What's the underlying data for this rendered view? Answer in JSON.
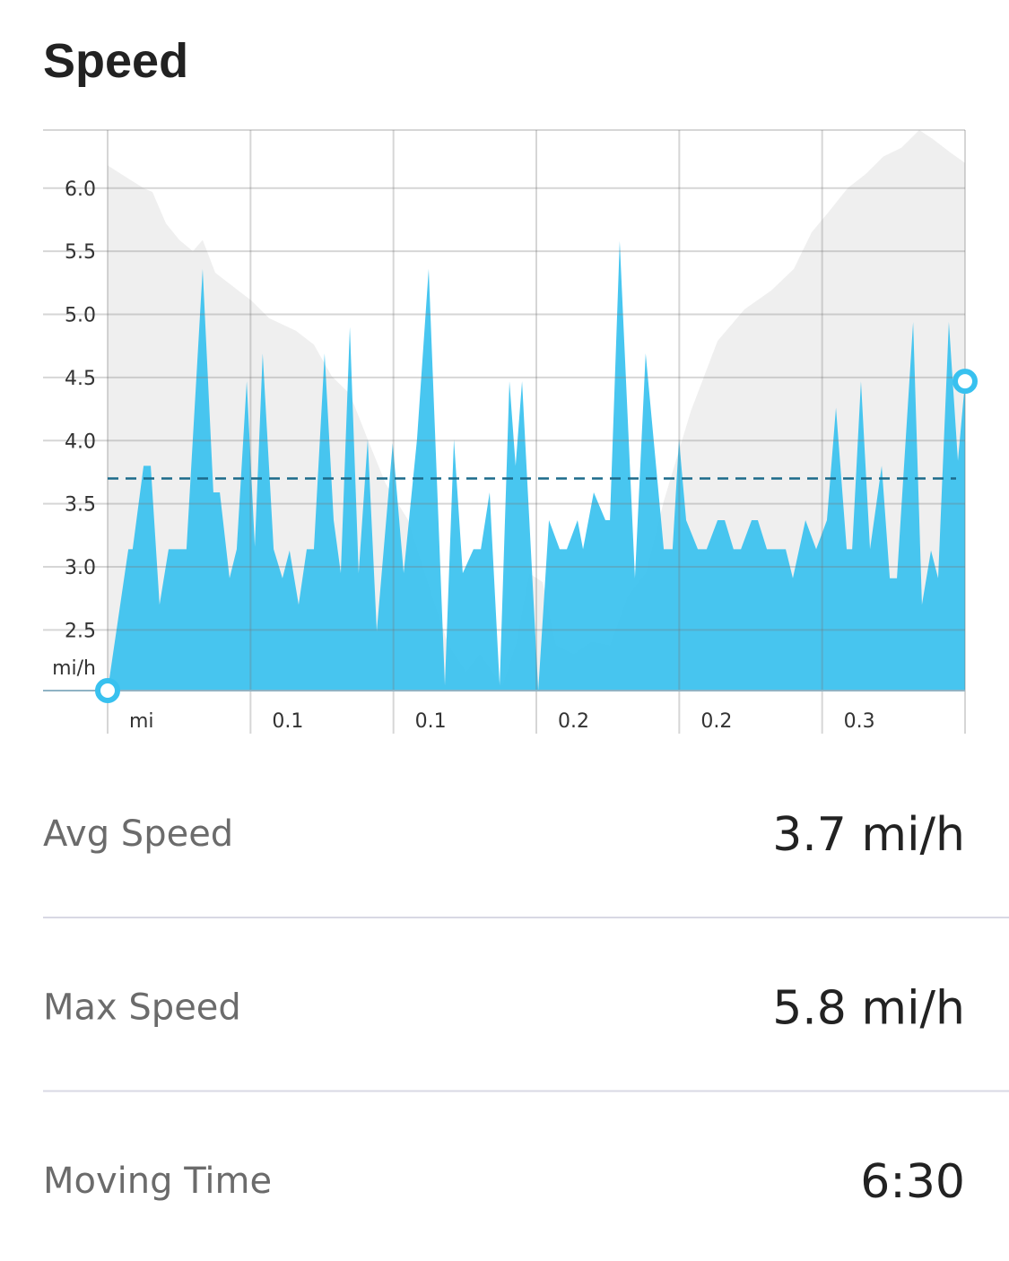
{
  "title": "Speed",
  "chart_data": {
    "type": "area",
    "y_label": "mi/h",
    "xlim": [
      0,
      0.36
    ],
    "ylim": [
      2.02,
      6.46
    ],
    "xticks": [
      {
        "value": 0,
        "label": "mi"
      },
      {
        "value": 0.06,
        "label": "0.1"
      },
      {
        "value": 0.12,
        "label": "0.1"
      },
      {
        "value": 0.18,
        "label": "0.2"
      },
      {
        "value": 0.24,
        "label": "0.2"
      },
      {
        "value": 0.3,
        "label": "0.3"
      }
    ],
    "yticks": [
      2.5,
      {
        "value": 3,
        "label": "3.0"
      },
      3.5,
      {
        "value": 4,
        "label": "4.0"
      },
      4.5,
      {
        "value": 5,
        "label": "5.0"
      },
      5.5,
      {
        "value": 6,
        "label": "6.0"
      }
    ],
    "grid": true,
    "reference_line": 3.7,
    "series": [
      {
        "color": "#efefef",
        "x": [
          0,
          0.0075,
          0.0151,
          0.0188,
          0.0245,
          0.0301,
          0.0358,
          0.0399,
          0.0452,
          0.0527,
          0.0603,
          0.0678,
          0.0791,
          0.0866,
          0.0941,
          0.1017,
          0.1092,
          0.1167,
          0.1262,
          0.1356,
          0.1431,
          0.1506,
          0.1563,
          0.1657,
          0.1713,
          0.177,
          0.1826,
          0.1883,
          0.1958,
          0.2033,
          0.2109,
          0.2184,
          0.2259,
          0.2335,
          0.2448,
          0.2561,
          0.2674,
          0.2787,
          0.2881,
          0.2956,
          0.3031,
          0.3107,
          0.3182,
          0.3257,
          0.3333,
          0.3408,
          0.3464,
          0.354,
          0.36
        ],
        "values": [
          6.18,
          6.09,
          6.0,
          5.97,
          5.72,
          5.59,
          5.5,
          5.59,
          5.33,
          5.22,
          5.11,
          4.97,
          4.87,
          4.76,
          4.51,
          4.37,
          4.01,
          3.66,
          3.37,
          2.81,
          2.38,
          2.17,
          2.31,
          2.06,
          2.38,
          2.95,
          2.88,
          2.38,
          2.31,
          2.41,
          2.38,
          2.77,
          2.95,
          3.52,
          4.23,
          4.79,
          5.04,
          5.19,
          5.36,
          5.65,
          5.82,
          6.0,
          6.11,
          6.25,
          6.32,
          6.46,
          6.39,
          6.28,
          6.2
        ]
      },
      {
        "color": "#38c1ef",
        "x": [
          0,
          0.0087,
          0.0105,
          0.0151,
          0.0181,
          0.0218,
          0.0256,
          0.0331,
          0.0399,
          0.0444,
          0.0471,
          0.0512,
          0.0542,
          0.0584,
          0.0618,
          0.0651,
          0.0697,
          0.0734,
          0.0764,
          0.0802,
          0.0836,
          0.0866,
          0.0911,
          0.0949,
          0.0979,
          0.1017,
          0.1054,
          0.1092,
          0.113,
          0.1197,
          0.1243,
          0.1299,
          0.1348,
          0.1416,
          0.1454,
          0.1491,
          0.1536,
          0.1567,
          0.1604,
          0.1646,
          0.1687,
          0.1713,
          0.174,
          0.1808,
          0.1853,
          0.1898,
          0.1928,
          0.1973,
          0.1996,
          0.2041,
          0.209,
          0.2109,
          0.215,
          0.2214,
          0.2259,
          0.2335,
          0.2372,
          0.2399,
          0.2429,
          0.2478,
          0.2515,
          0.2561,
          0.2591,
          0.2628,
          0.2659,
          0.2704,
          0.273,
          0.2768,
          0.2847,
          0.2877,
          0.293,
          0.2975,
          0.302,
          0.3058,
          0.3103,
          0.3126,
          0.3163,
          0.3201,
          0.325,
          0.3284,
          0.3314,
          0.3382,
          0.3419,
          0.3457,
          0.3487,
          0.3532,
          0.357,
          0.36
        ],
        "values": [
          2.02,
          3.14,
          3.14,
          3.8,
          3.8,
          2.7,
          3.14,
          3.14,
          5.36,
          3.59,
          3.59,
          2.91,
          3.14,
          4.47,
          3.16,
          4.69,
          3.14,
          2.91,
          3.13,
          2.7,
          3.14,
          3.14,
          4.69,
          3.37,
          2.95,
          4.9,
          2.95,
          4.01,
          2.49,
          3.98,
          2.95,
          4.01,
          5.36,
          2.06,
          4.01,
          2.95,
          3.14,
          3.14,
          3.59,
          2.06,
          4.47,
          3.8,
          4.47,
          2.02,
          3.37,
          3.14,
          3.14,
          3.37,
          3.14,
          3.59,
          3.37,
          3.37,
          5.58,
          2.91,
          4.69,
          3.14,
          3.14,
          4.01,
          3.37,
          3.14,
          3.14,
          3.37,
          3.37,
          3.14,
          3.14,
          3.37,
          3.37,
          3.14,
          3.14,
          2.91,
          3.37,
          3.14,
          3.37,
          4.26,
          3.14,
          3.14,
          4.47,
          3.14,
          3.8,
          2.91,
          2.91,
          4.94,
          2.7,
          3.13,
          2.91,
          4.94,
          3.84,
          4.47
        ]
      }
    ]
  },
  "stats": [
    {
      "label": "Avg Speed",
      "value": "3.7 mi/h"
    },
    {
      "label": "Max Speed",
      "value": "5.8 mi/h"
    },
    {
      "label": "Moving Time",
      "value": "6:30"
    }
  ]
}
